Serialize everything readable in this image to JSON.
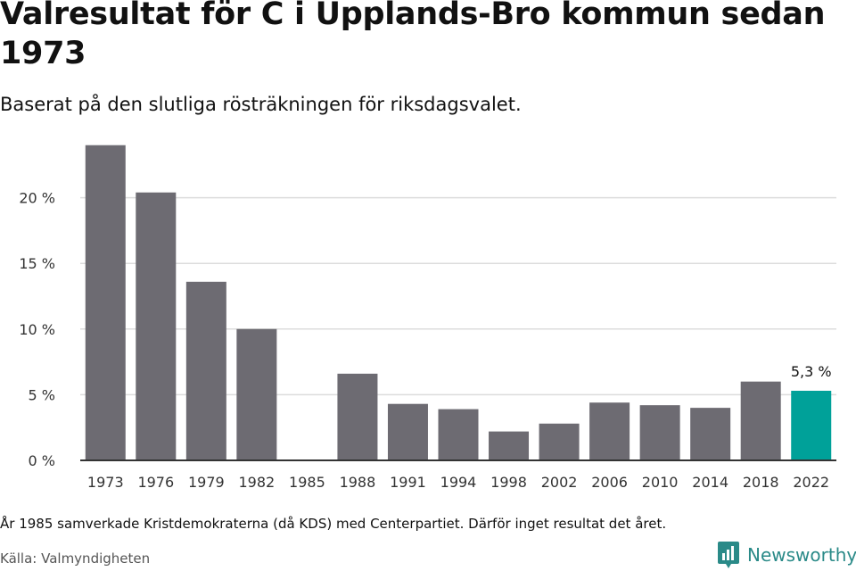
{
  "header": {
    "title": "Valresultat för C i Upplands-Bro kommun sedan 1973",
    "subtitle": "Baserat på den slutliga rösträkningen för riksdagsvalet."
  },
  "footer": {
    "note": "År 1985 samverkade Kristdemokraterna (då KDS) med Centerpartiet. Därför inget resultat det året.",
    "source": "Källa: Valmyndigheten",
    "brand": "Newsworthy"
  },
  "colors": {
    "bar": "#6d6b72",
    "highlight": "#00a199",
    "grid": "#dcdcdc",
    "axis": "#333333",
    "brand": "#2a8a88"
  },
  "chart_data": {
    "type": "bar",
    "categories": [
      "1973",
      "1976",
      "1979",
      "1982",
      "1985",
      "1988",
      "1991",
      "1994",
      "1998",
      "2002",
      "2006",
      "2010",
      "2014",
      "2018",
      "2022"
    ],
    "values": [
      24.0,
      20.4,
      13.6,
      10.0,
      null,
      6.6,
      4.3,
      3.9,
      2.2,
      2.8,
      4.4,
      4.2,
      4.0,
      6.0,
      5.3
    ],
    "highlight_index": 14,
    "data_labels": [
      {
        "index": 14,
        "text": "5,3 %"
      }
    ],
    "yticks": [
      0,
      5,
      10,
      15,
      20
    ],
    "ytick_labels": [
      "0 %",
      "5 %",
      "10 %",
      "15 %",
      "20 %"
    ],
    "ylim": [
      0,
      24
    ],
    "grid": true,
    "xlabel": "",
    "ylabel": ""
  }
}
